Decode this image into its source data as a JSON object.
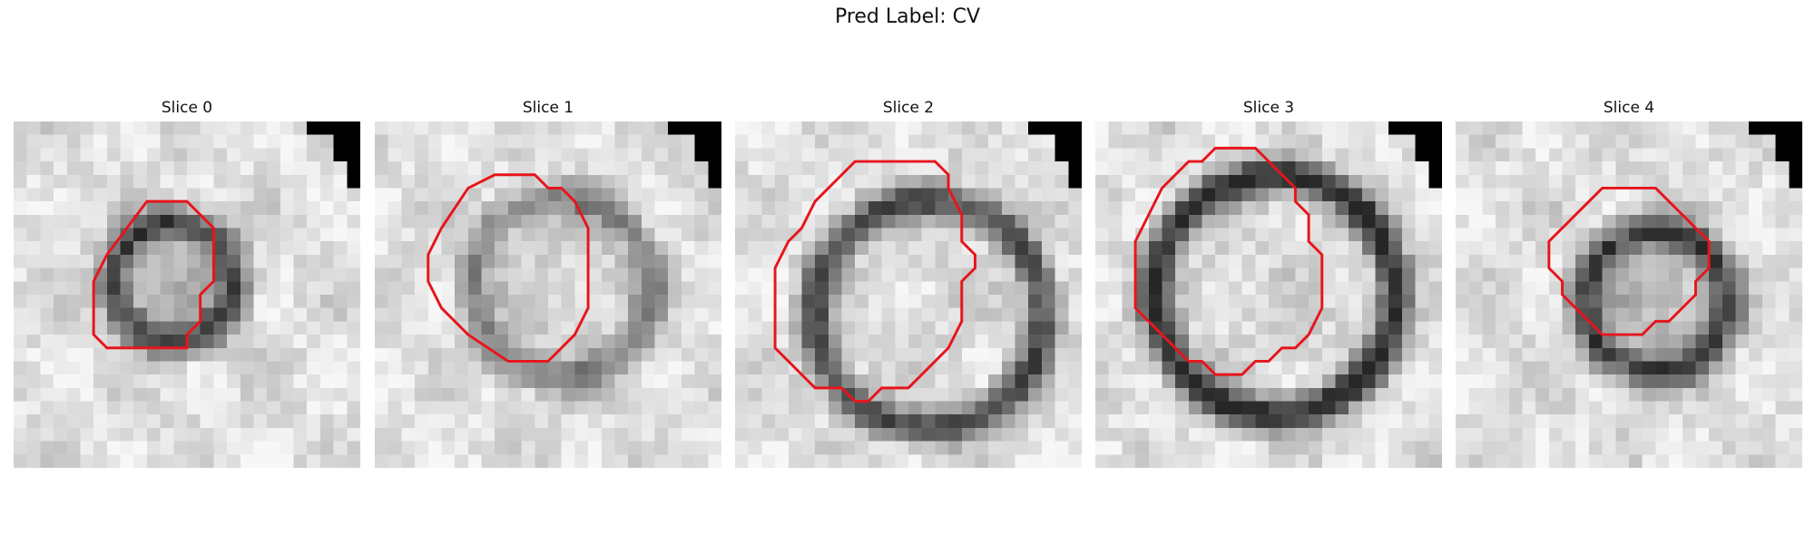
{
  "figure": {
    "title": "Pred Label: CV",
    "contour_color": "#e8141b",
    "panels": [
      {
        "title": "Slice 0",
        "style": {
          "cx": 12,
          "cy": 12,
          "r": 4.6,
          "ring": 0.55,
          "inner": 0.12
        },
        "contour": [
          [
            13,
            6
          ],
          [
            14,
            7
          ],
          [
            15,
            8
          ],
          [
            15,
            12
          ],
          [
            14,
            13
          ],
          [
            14,
            15
          ],
          [
            13,
            16
          ],
          [
            13,
            17
          ],
          [
            7,
            17
          ],
          [
            6,
            16
          ],
          [
            6,
            12
          ],
          [
            7,
            10
          ],
          [
            10,
            6
          ]
        ]
      },
      {
        "title": "Slice 1",
        "style": {
          "cx": 14,
          "cy": 12.5,
          "r": 6.8,
          "ring": 0.35,
          "inner": 0.05
        },
        "contour": [
          [
            12,
            4
          ],
          [
            13,
            5
          ],
          [
            14,
            5
          ],
          [
            15,
            6
          ],
          [
            16,
            8
          ],
          [
            16,
            14
          ],
          [
            15,
            16
          ],
          [
            13,
            18
          ],
          [
            10,
            18
          ],
          [
            7,
            16
          ],
          [
            5,
            14
          ],
          [
            4,
            12
          ],
          [
            4,
            10
          ],
          [
            5,
            8
          ],
          [
            7,
            5
          ],
          [
            9,
            4
          ]
        ]
      },
      {
        "title": "Slice 2",
        "style": {
          "cx": 14.5,
          "cy": 14.5,
          "r": 8.6,
          "ring": 0.6,
          "inner": 0.02
        },
        "contour": [
          [
            15,
            3
          ],
          [
            16,
            4
          ],
          [
            16,
            5
          ],
          [
            17,
            7
          ],
          [
            17,
            9
          ],
          [
            18,
            10
          ],
          [
            18,
            11
          ],
          [
            17,
            12
          ],
          [
            17,
            15
          ],
          [
            16,
            17
          ],
          [
            15,
            18
          ],
          [
            14,
            19
          ],
          [
            13,
            20
          ],
          [
            11,
            20
          ],
          [
            10,
            21
          ],
          [
            9,
            21
          ],
          [
            8,
            20
          ],
          [
            6,
            20
          ],
          [
            5,
            19
          ],
          [
            4,
            18
          ],
          [
            3,
            17
          ],
          [
            3,
            11
          ],
          [
            4,
            9
          ],
          [
            5,
            8
          ],
          [
            6,
            6
          ],
          [
            7,
            5
          ],
          [
            8,
            4
          ],
          [
            9,
            3
          ]
        ]
      },
      {
        "title": "Slice 3",
        "style": {
          "cx": 13.5,
          "cy": 13,
          "r": 9,
          "ring": 0.7,
          "inner": 0.03
        },
        "contour": [
          [
            11,
            2
          ],
          [
            12,
            2
          ],
          [
            13,
            3
          ],
          [
            14,
            4
          ],
          [
            15,
            5
          ],
          [
            15,
            6
          ],
          [
            16,
            7
          ],
          [
            16,
            8
          ],
          [
            16,
            9
          ],
          [
            17,
            10
          ],
          [
            17,
            14
          ],
          [
            16,
            16
          ],
          [
            15,
            17
          ],
          [
            14,
            17
          ],
          [
            13,
            18
          ],
          [
            12,
            18
          ],
          [
            11,
            19
          ],
          [
            9,
            19
          ],
          [
            8,
            18
          ],
          [
            7,
            18
          ],
          [
            6,
            17
          ],
          [
            5,
            16
          ],
          [
            4,
            15
          ],
          [
            3,
            14
          ],
          [
            3,
            9
          ],
          [
            4,
            7
          ],
          [
            5,
            5
          ],
          [
            6,
            4
          ],
          [
            7,
            3
          ],
          [
            8,
            3
          ],
          [
            9,
            2
          ]
        ]
      },
      {
        "title": "Slice 4",
        "style": {
          "cx": 15,
          "cy": 13.5,
          "r": 5.5,
          "ring": 0.55,
          "inner": 0.15
        },
        "contour": [
          [
            15,
            5
          ],
          [
            16,
            6
          ],
          [
            17,
            7
          ],
          [
            18,
            8
          ],
          [
            19,
            9
          ],
          [
            19,
            11
          ],
          [
            18,
            12
          ],
          [
            18,
            13
          ],
          [
            17,
            14
          ],
          [
            16,
            15
          ],
          [
            15,
            15
          ],
          [
            14,
            16
          ],
          [
            11,
            16
          ],
          [
            10,
            15
          ],
          [
            9,
            14
          ],
          [
            8,
            13
          ],
          [
            8,
            12
          ],
          [
            7,
            11
          ],
          [
            7,
            9
          ],
          [
            8,
            8
          ],
          [
            9,
            7
          ],
          [
            10,
            6
          ],
          [
            11,
            5
          ]
        ]
      }
    ]
  }
}
